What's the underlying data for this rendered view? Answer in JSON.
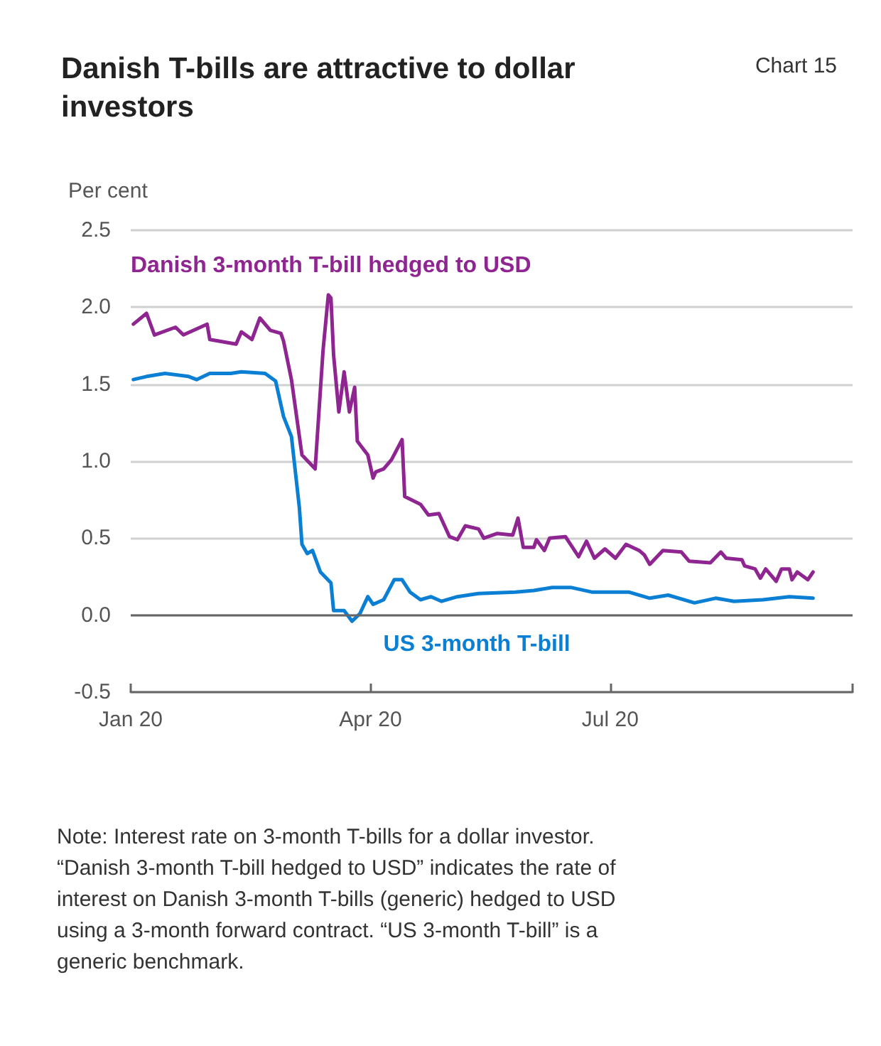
{
  "chart_data": {
    "type": "line",
    "title": "Danish T-bills are attractive to dollar investors",
    "subtitle": "Chart 15",
    "ylabel": "Per cent",
    "annotations": [
      "Note: Interest rate on 3-month T-bills for a dollar investor. “Danish 3-month T-bill hedged to USD” indicates the rate of interest on Danish 3-month T-bills (generic) hedged to USD using a 3-month forward contract. “US 3-month T-bill” is a generic benchmark."
    ],
    "xlim": [
      "2020-01-01",
      "2020-10-01"
    ],
    "xticks": [
      {
        "value": "2020-01-01",
        "label": "Jan 20"
      },
      {
        "value": "2020-04-01",
        "label": "Apr 20"
      },
      {
        "value": "2020-07-01",
        "label": "Jul 20"
      },
      {
        "value": "2020-10-01",
        "label": null
      }
    ],
    "ylim": [
      -0.5,
      2.5
    ],
    "yticks": [
      -0.5,
      {
        "value": 0,
        "label": "0.0"
      },
      0.5,
      {
        "value": 1,
        "label": "1.0"
      },
      1.5,
      {
        "value": 2,
        "label": "2.0"
      },
      2.5
    ],
    "grid": "y",
    "legend": false,
    "marker": "none",
    "line_style": "solid",
    "ref_lines": [
      {
        "axis": "y",
        "value": 0,
        "color": "#666666"
      }
    ],
    "series": [
      {
        "name": "Danish 3-month T-bill hedged to USD",
        "color": "#8e2590",
        "x": [
          "2020-01-02",
          "2020-01-07",
          "2020-01-10",
          "2020-01-18",
          "2020-01-21",
          "2020-01-30",
          "2020-01-31",
          "2020-02-10",
          "2020-02-12",
          "2020-02-16",
          "2020-02-19",
          "2020-02-23",
          "2020-02-27",
          "2020-02-28",
          "2020-03-02",
          "2020-03-06",
          "2020-03-11",
          "2020-03-14",
          "2020-03-16",
          "2020-03-17",
          "2020-03-18",
          "2020-03-20",
          "2020-03-22",
          "2020-03-24",
          "2020-03-26",
          "2020-03-27",
          "2020-03-31",
          "2020-04-02",
          "2020-04-03",
          "2020-04-06",
          "2020-04-09",
          "2020-04-13",
          "2020-04-14",
          "2020-04-20",
          "2020-04-23",
          "2020-04-27",
          "2020-05-01",
          "2020-05-04",
          "2020-05-07",
          "2020-05-12",
          "2020-05-14",
          "2020-05-19",
          "2020-05-25",
          "2020-05-27",
          "2020-05-29",
          "2020-06-02",
          "2020-06-03",
          "2020-06-06",
          "2020-06-08",
          "2020-06-14",
          "2020-06-19",
          "2020-06-22",
          "2020-06-25",
          "2020-06-29",
          "2020-07-03",
          "2020-07-07",
          "2020-07-12",
          "2020-07-14",
          "2020-07-16",
          "2020-07-21",
          "2020-07-28",
          "2020-07-31",
          "2020-08-08",
          "2020-08-12",
          "2020-08-14",
          "2020-08-20",
          "2020-08-21",
          "2020-08-25",
          "2020-08-27",
          "2020-08-29",
          "2020-09-02",
          "2020-09-04",
          "2020-09-07",
          "2020-09-08",
          "2020-09-10",
          "2020-09-14",
          "2020-09-16"
        ],
        "values": [
          1.89,
          1.96,
          1.82,
          1.87,
          1.82,
          1.89,
          1.79,
          1.76,
          1.84,
          1.79,
          1.93,
          1.85,
          1.83,
          1.78,
          1.53,
          1.04,
          0.95,
          1.72,
          2.08,
          2.06,
          1.69,
          1.32,
          1.58,
          1.32,
          1.48,
          1.13,
          1.04,
          0.89,
          0.93,
          0.95,
          1.01,
          1.14,
          0.77,
          0.72,
          0.65,
          0.66,
          0.51,
          0.49,
          0.58,
          0.56,
          0.5,
          0.53,
          0.52,
          0.63,
          0.44,
          0.44,
          0.49,
          0.42,
          0.5,
          0.51,
          0.38,
          0.48,
          0.37,
          0.43,
          0.37,
          0.46,
          0.42,
          0.39,
          0.33,
          0.42,
          0.41,
          0.35,
          0.34,
          0.41,
          0.37,
          0.36,
          0.32,
          0.3,
          0.24,
          0.3,
          0.22,
          0.3,
          0.3,
          0.23,
          0.28,
          0.23,
          0.28
        ]
      },
      {
        "name": "US 3-month T-bill",
        "color": "#0a7fd4",
        "x": [
          "2020-01-02",
          "2020-01-07",
          "2020-01-14",
          "2020-01-23",
          "2020-01-26",
          "2020-01-31",
          "2020-02-08",
          "2020-02-12",
          "2020-02-21",
          "2020-02-25",
          "2020-02-28",
          "2020-03-02",
          "2020-03-05",
          "2020-03-06",
          "2020-03-08",
          "2020-03-10",
          "2020-03-13",
          "2020-03-17",
          "2020-03-18",
          "2020-03-22",
          "2020-03-25",
          "2020-03-28",
          "2020-03-31",
          "2020-04-02",
          "2020-04-06",
          "2020-04-10",
          "2020-04-13",
          "2020-04-16",
          "2020-04-20",
          "2020-04-24",
          "2020-04-28",
          "2020-05-04",
          "2020-05-12",
          "2020-05-26",
          "2020-06-02",
          "2020-06-09",
          "2020-06-16",
          "2020-06-24",
          "2020-07-08",
          "2020-07-16",
          "2020-07-23",
          "2020-08-02",
          "2020-08-10",
          "2020-08-17",
          "2020-08-28",
          "2020-09-07",
          "2020-09-16"
        ],
        "values": [
          1.53,
          1.55,
          1.57,
          1.55,
          1.53,
          1.57,
          1.57,
          1.58,
          1.57,
          1.52,
          1.29,
          1.16,
          0.7,
          0.46,
          0.4,
          0.42,
          0.28,
          0.21,
          0.03,
          0.03,
          -0.04,
          0.01,
          0.12,
          0.07,
          0.1,
          0.23,
          0.23,
          0.15,
          0.1,
          0.12,
          0.09,
          0.12,
          0.14,
          0.15,
          0.16,
          0.18,
          0.18,
          0.15,
          0.15,
          0.11,
          0.13,
          0.08,
          0.11,
          0.09,
          0.1,
          0.12,
          0.11
        ]
      }
    ]
  }
}
